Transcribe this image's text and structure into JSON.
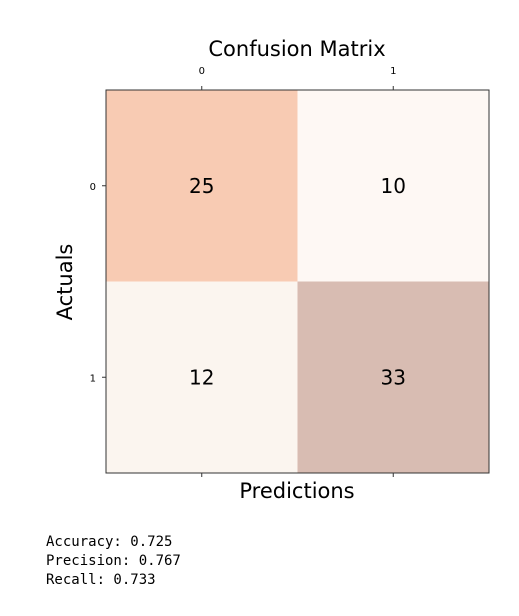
{
  "chart_data": {
    "type": "heatmap",
    "title": "Confusion Matrix",
    "xlabel": "Predictions",
    "ylabel": "Actuals",
    "x_ticks": [
      "0",
      "1"
    ],
    "y_ticks": [
      "0",
      "1"
    ],
    "matrix": [
      [
        25,
        10
      ],
      [
        12,
        33
      ]
    ],
    "cell_colors": [
      [
        "#f8cbb3",
        "#fef8f4"
      ],
      [
        "#fbf5ef",
        "#d8bcb2"
      ]
    ],
    "grid": false
  },
  "metrics": {
    "accuracy": "Accuracy: 0.725",
    "precision": "Precision: 0.767",
    "recall": "Recall: 0.733"
  }
}
